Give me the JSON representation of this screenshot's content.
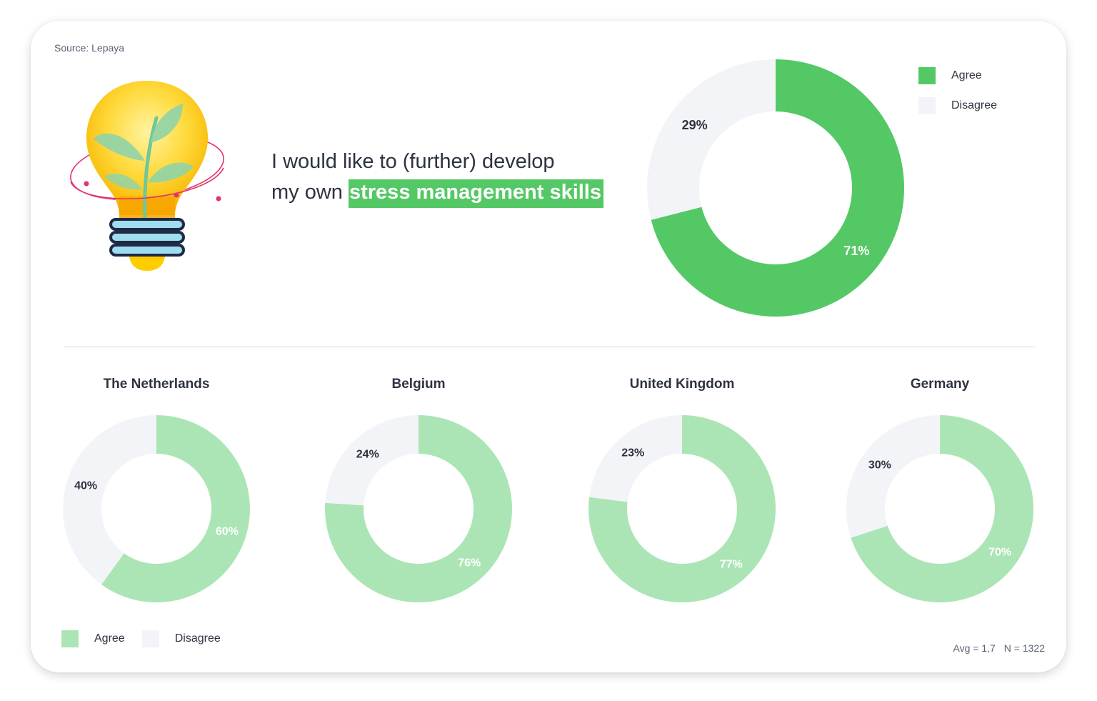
{
  "source": "Source: Lepaya",
  "headline": {
    "line1": "I would like to (further) develop",
    "line2_prefix": "my own ",
    "line2_highlight": "stress management skills"
  },
  "colors": {
    "agree_main": "#55c866",
    "agree_country": "#ace5b5",
    "disagree": "#f3f4f8",
    "highlight": "#55c866"
  },
  "legend": {
    "agree": "Agree",
    "disagree": "Disagree"
  },
  "stats": {
    "avg": "Avg = 1,7",
    "n": "N = 1322"
  },
  "illustration": {
    "icon": "lightbulb-plant-icon"
  },
  "chart_data": [
    {
      "type": "pie",
      "title": "",
      "categories": [
        "Agree",
        "Disagree"
      ],
      "values": [
        71,
        29
      ],
      "labels": [
        "71%",
        "29%"
      ],
      "legend_position": "top-right"
    },
    {
      "type": "pie",
      "title": "The Netherlands",
      "categories": [
        "Agree",
        "Disagree"
      ],
      "values": [
        60,
        40
      ],
      "labels": [
        "60%",
        "40%"
      ]
    },
    {
      "type": "pie",
      "title": "Belgium",
      "categories": [
        "Agree",
        "Disagree"
      ],
      "values": [
        76,
        24
      ],
      "labels": [
        "76%",
        "24%"
      ]
    },
    {
      "type": "pie",
      "title": "United Kingdom",
      "categories": [
        "Agree",
        "Disagree"
      ],
      "values": [
        77,
        23
      ],
      "labels": [
        "77%",
        "23%"
      ]
    },
    {
      "type": "pie",
      "title": "Germany",
      "categories": [
        "Agree",
        "Disagree"
      ],
      "values": [
        70,
        30
      ],
      "labels": [
        "70%",
        "30%"
      ]
    }
  ]
}
